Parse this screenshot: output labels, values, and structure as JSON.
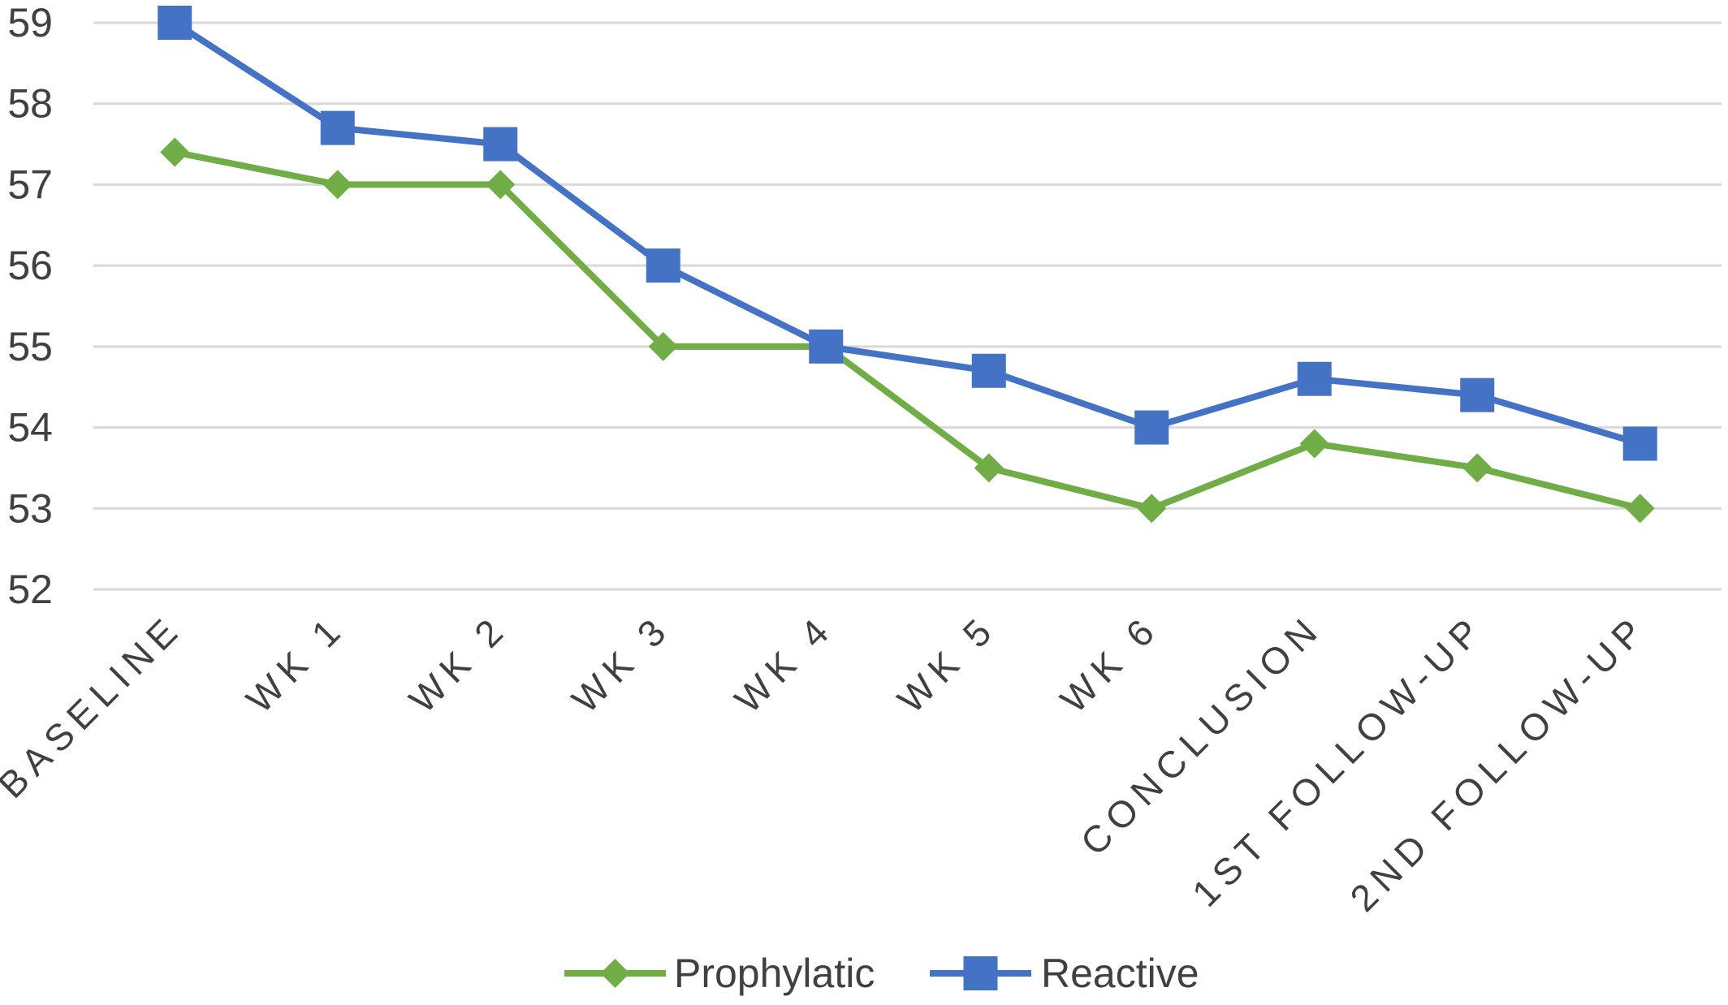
{
  "chart_data": {
    "type": "line",
    "categories": [
      "BASELINE",
      "WK 1",
      "WK 2",
      "WK 3",
      "WK 4",
      "WK 5",
      "WK 6",
      "CONCLUSION",
      "1ST FOLLOW-UP",
      "2ND FOLLOW-UP"
    ],
    "series": [
      {
        "name": "Prophylatic",
        "values": [
          57.4,
          57,
          57,
          55,
          55,
          53.5,
          53,
          53.8,
          53.5,
          53
        ],
        "color": "#70ad47",
        "marker": "diamond"
      },
      {
        "name": "Reactive",
        "values": [
          59,
          57.7,
          57.5,
          56,
          55,
          54.7,
          54,
          54.6,
          54.4,
          53.8
        ],
        "color": "#4472c4",
        "marker": "square"
      }
    ],
    "ylim": [
      52,
      59
    ],
    "yticks": [
      52,
      53,
      54,
      55,
      56,
      57,
      58,
      59
    ],
    "grid": true,
    "legend": "bottom",
    "title": "",
    "xlabel": "",
    "ylabel": ""
  }
}
